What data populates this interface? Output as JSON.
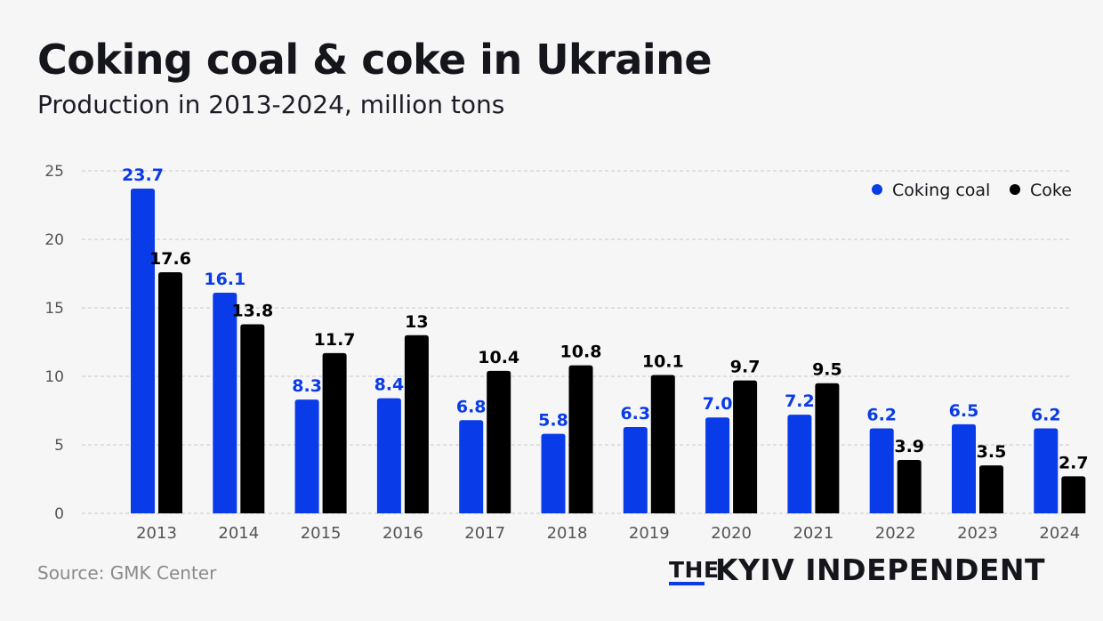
{
  "header": {
    "title": "Coking coal & coke in Ukraine",
    "subtitle": "Production in 2013-2024, million tons"
  },
  "footer": {
    "source": "Source: GMK Center",
    "brand_prefix": "THE",
    "brand_name": "KYIV INDEPENDENT"
  },
  "colors": {
    "coking_coal": "#0a3be8",
    "coke": "#000000",
    "grid": "#c8c8c8",
    "axis_text": "#555555"
  },
  "chart_data": {
    "type": "bar",
    "title": "Coking coal & coke in Ukraine",
    "subtitle": "Production in 2013-2024, million tons",
    "xlabel": "",
    "ylabel": "",
    "ylim": [
      0,
      25
    ],
    "yticks": [
      0,
      5,
      10,
      15,
      20,
      25
    ],
    "grid": true,
    "legend_position": "top-right",
    "categories": [
      "2013",
      "2014",
      "2015",
      "2016",
      "2017",
      "2018",
      "2019",
      "2020",
      "2021",
      "2022",
      "2023",
      "2024"
    ],
    "series": [
      {
        "name": "Coking coal",
        "values": [
          23.7,
          16.1,
          8.3,
          8.4,
          6.8,
          5.8,
          6.3,
          7.0,
          7.2,
          6.2,
          6.5,
          6.2
        ],
        "labels": [
          "23.7",
          "16.1",
          "8.3",
          "8.4",
          "6.8",
          "5.8",
          "6.3",
          "7.0",
          "7.2",
          "6.2",
          "6.5",
          "6.2"
        ]
      },
      {
        "name": "Coke",
        "values": [
          17.6,
          13.8,
          11.7,
          13,
          10.4,
          10.8,
          10.1,
          9.7,
          9.5,
          3.9,
          3.5,
          2.7
        ],
        "labels": [
          "17.6",
          "13.8",
          "11.7",
          "13",
          "10.4",
          "10.8",
          "10.1",
          "9.7",
          "9.5",
          "3.9",
          "3.5",
          "2.7"
        ]
      }
    ]
  }
}
